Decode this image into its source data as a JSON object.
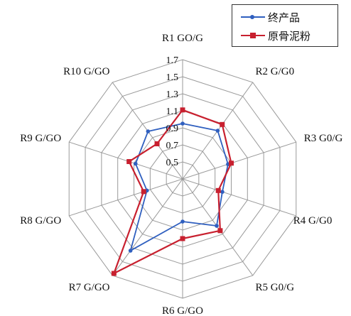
{
  "chart_data": {
    "type": "radar",
    "axes": [
      "R1 GO/G",
      "R2 G/G0",
      "R3 G0/G",
      "R4 G/G0",
      "R5 G0/G",
      "R6 G/GO",
      "R7 G/GO",
      "R8 G/GO",
      "R9 G/GO",
      "R10 G/GO"
    ],
    "r_ticks": [
      "0.5",
      "0.7",
      "0.9",
      "1.1",
      "1.3",
      "1.5",
      "1.7"
    ],
    "rlim": [
      0.3,
      1.7
    ],
    "grid": true,
    "legend_position": "top-right",
    "series": [
      {
        "name": "终产品",
        "color": "#2f5fbf",
        "marker": "circle",
        "values": [
          0.95,
          1.0,
          0.86,
          0.79,
          0.98,
          0.8,
          1.34,
          0.74,
          0.88,
          0.99
        ]
      },
      {
        "name": "原骨泥粉",
        "color": "#c8202f",
        "marker": "square",
        "values": [
          1.11,
          1.09,
          0.9,
          0.74,
          1.05,
          1.0,
          1.67,
          0.78,
          0.96,
          0.81
        ]
      }
    ]
  }
}
